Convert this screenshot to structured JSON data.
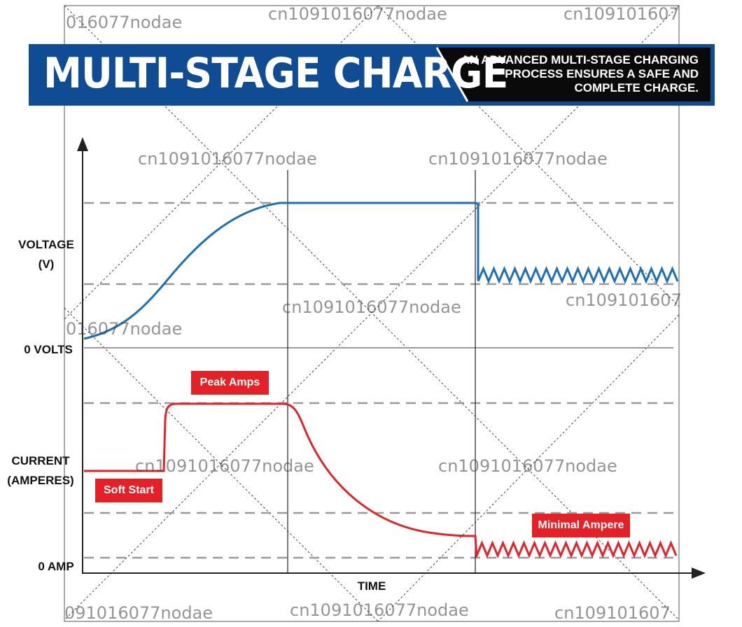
{
  "banner": {
    "title": "MULTI-STAGE CHARGE",
    "subtitle_lines": [
      "AN ADVANCED MULTI-STAGE CHARGING",
      "PROCESS ENSURES A SAFE AND",
      "COMPLETE CHARGE."
    ]
  },
  "axes": {
    "voltage_label_lines": [
      "VOLTAGE",
      "(V)"
    ],
    "zero_volts": "0 VOLTS",
    "current_label_lines": [
      "CURRENT",
      "(AMPERES)"
    ],
    "zero_amp": "0 AMP",
    "time": "TIME"
  },
  "tags": {
    "peak": "Peak Amps",
    "soft_start": "Soft Start",
    "minimal": "Minimal Ampere"
  },
  "watermark": {
    "text": "cn1091016077nodae",
    "partial_a": "016077nodae",
    "partial_b": "0 16077nodae",
    "partial_c": "cn109101607",
    "partial_d": "091016077nodae",
    "partial_e": "cn10910160 7"
  },
  "colors": {
    "banner_blue": "#0f4c94",
    "banner_black": "#0a0a0a",
    "voltage_curve": "#1f6fb4",
    "current_curve": "#e0242a",
    "tag_red": "#e52128",
    "dashed": "#9a9a9a"
  }
}
